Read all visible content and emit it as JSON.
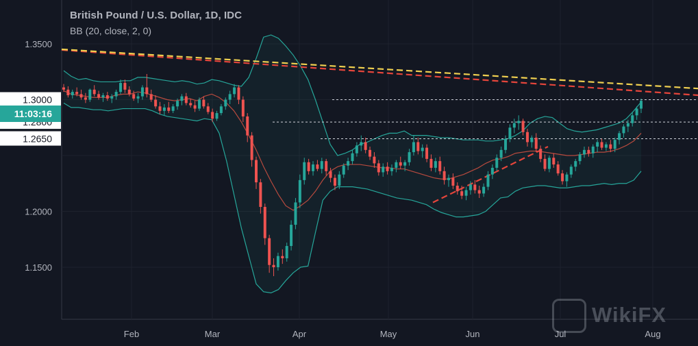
{
  "header": {
    "title": "British Pound / U.S. Dollar, 1D, IDC",
    "indicator": "BB (20, close, 2, 0)"
  },
  "price_scale": {
    "current_time_tag": "11:03:16",
    "level_tags": [
      "1.3000",
      "1.2800",
      "1.2650"
    ]
  },
  "watermark": "WikiFX",
  "colors": {
    "background": "#131722",
    "up": "#26a69a",
    "down": "#ef5350",
    "bb_band": "#26a69a",
    "bb_basis": "#b84a3e",
    "trend_yellow": "#f0d050",
    "trend_red": "#e5453b",
    "time_tag_bg": "#26a69a"
  },
  "chart_data": {
    "type": "candlestick",
    "title": "British Pound / U.S. Dollar, 1D, IDC",
    "indicator": "BB (20, close, 2, 0)",
    "x_ticks": [
      "Feb",
      "Mar",
      "Apr",
      "May",
      "Jun",
      "Jul",
      "Aug"
    ],
    "y_ticks": [
      "1.1500",
      "1.2000",
      "1.3500"
    ],
    "ylim": [
      1.115,
      1.375
    ],
    "grid": true,
    "series": [
      {
        "kind": "ohlc",
        "values": [
          [
            1.311,
            1.314,
            1.307,
            1.309
          ],
          [
            1.309,
            1.312,
            1.302,
            1.304
          ],
          [
            1.304,
            1.309,
            1.301,
            1.307
          ],
          [
            1.307,
            1.311,
            1.303,
            1.305
          ],
          [
            1.305,
            1.309,
            1.3,
            1.302
          ],
          [
            1.302,
            1.306,
            1.297,
            1.3
          ],
          [
            1.3,
            1.31,
            1.298,
            1.309
          ],
          [
            1.309,
            1.313,
            1.303,
            1.305
          ],
          [
            1.305,
            1.308,
            1.3,
            1.302
          ],
          [
            1.302,
            1.306,
            1.298,
            1.304
          ],
          [
            1.304,
            1.307,
            1.299,
            1.301
          ],
          [
            1.301,
            1.305,
            1.297,
            1.303
          ],
          [
            1.303,
            1.309,
            1.3,
            1.307
          ],
          [
            1.307,
            1.318,
            1.305,
            1.315
          ],
          [
            1.315,
            1.318,
            1.306,
            1.309
          ],
          [
            1.309,
            1.312,
            1.303,
            1.305
          ],
          [
            1.305,
            1.308,
            1.299,
            1.301
          ],
          [
            1.301,
            1.306,
            1.297,
            1.303
          ],
          [
            1.303,
            1.313,
            1.3,
            1.311
          ],
          [
            1.311,
            1.323,
            1.302,
            1.305
          ],
          [
            1.305,
            1.309,
            1.298,
            1.3
          ],
          [
            1.3,
            1.304,
            1.292,
            1.294
          ],
          [
            1.294,
            1.298,
            1.287,
            1.29
          ],
          [
            1.29,
            1.296,
            1.286,
            1.293
          ],
          [
            1.293,
            1.298,
            1.288,
            1.29
          ],
          [
            1.29,
            1.296,
            1.288,
            1.294
          ],
          [
            1.294,
            1.301,
            1.291,
            1.299
          ],
          [
            1.299,
            1.305,
            1.295,
            1.303
          ],
          [
            1.303,
            1.306,
            1.295,
            1.297
          ],
          [
            1.297,
            1.301,
            1.293,
            1.295
          ],
          [
            1.295,
            1.299,
            1.289,
            1.292
          ],
          [
            1.292,
            1.302,
            1.29,
            1.3
          ],
          [
            1.3,
            1.303,
            1.292,
            1.294
          ],
          [
            1.294,
            1.297,
            1.287,
            1.289
          ],
          [
            1.289,
            1.292,
            1.28,
            1.283
          ],
          [
            1.283,
            1.29,
            1.281,
            1.288
          ],
          [
            1.288,
            1.296,
            1.286,
            1.294
          ],
          [
            1.294,
            1.302,
            1.291,
            1.3
          ],
          [
            1.3,
            1.308,
            1.296,
            1.305
          ],
          [
            1.305,
            1.314,
            1.302,
            1.311
          ],
          [
            1.311,
            1.313,
            1.296,
            1.3
          ],
          [
            1.3,
            1.303,
            1.28,
            1.285
          ],
          [
            1.285,
            1.288,
            1.262,
            1.268
          ],
          [
            1.268,
            1.271,
            1.24,
            1.246
          ],
          [
            1.246,
            1.249,
            1.22,
            1.226
          ],
          [
            1.226,
            1.229,
            1.198,
            1.204
          ],
          [
            1.204,
            1.207,
            1.17,
            1.176
          ],
          [
            1.176,
            1.179,
            1.145,
            1.152
          ],
          [
            1.152,
            1.158,
            1.142,
            1.15
          ],
          [
            1.15,
            1.163,
            1.147,
            1.16
          ],
          [
            1.16,
            1.166,
            1.153,
            1.158
          ],
          [
            1.158,
            1.172,
            1.155,
            1.169
          ],
          [
            1.169,
            1.192,
            1.165,
            1.188
          ],
          [
            1.188,
            1.212,
            1.184,
            1.208
          ],
          [
            1.208,
            1.233,
            1.203,
            1.228
          ],
          [
            1.228,
            1.248,
            1.224,
            1.244
          ],
          [
            1.244,
            1.247,
            1.233,
            1.236
          ],
          [
            1.236,
            1.245,
            1.232,
            1.242
          ],
          [
            1.242,
            1.246,
            1.236,
            1.238
          ],
          [
            1.238,
            1.248,
            1.234,
            1.245
          ],
          [
            1.245,
            1.247,
            1.232,
            1.236
          ],
          [
            1.236,
            1.239,
            1.226,
            1.23
          ],
          [
            1.23,
            1.233,
            1.219,
            1.223
          ],
          [
            1.223,
            1.236,
            1.22,
            1.233
          ],
          [
            1.233,
            1.243,
            1.23,
            1.241
          ],
          [
            1.241,
            1.248,
            1.237,
            1.245
          ],
          [
            1.245,
            1.255,
            1.242,
            1.252
          ],
          [
            1.252,
            1.262,
            1.249,
            1.259
          ],
          [
            1.259,
            1.268,
            1.254,
            1.262
          ],
          [
            1.262,
            1.266,
            1.252,
            1.255
          ],
          [
            1.255,
            1.258,
            1.246,
            1.249
          ],
          [
            1.249,
            1.253,
            1.239,
            1.243
          ],
          [
            1.243,
            1.246,
            1.232,
            1.235
          ],
          [
            1.235,
            1.243,
            1.231,
            1.24
          ],
          [
            1.24,
            1.244,
            1.233,
            1.236
          ],
          [
            1.236,
            1.242,
            1.232,
            1.239
          ],
          [
            1.239,
            1.246,
            1.235,
            1.244
          ],
          [
            1.244,
            1.249,
            1.238,
            1.241
          ],
          [
            1.241,
            1.246,
            1.236,
            1.244
          ],
          [
            1.244,
            1.256,
            1.241,
            1.253
          ],
          [
            1.253,
            1.268,
            1.25,
            1.262
          ],
          [
            1.262,
            1.266,
            1.251,
            1.254
          ],
          [
            1.254,
            1.26,
            1.248,
            1.257
          ],
          [
            1.257,
            1.26,
            1.244,
            1.247
          ],
          [
            1.247,
            1.251,
            1.236,
            1.239
          ],
          [
            1.239,
            1.248,
            1.235,
            1.245
          ],
          [
            1.245,
            1.249,
            1.233,
            1.236
          ],
          [
            1.236,
            1.24,
            1.224,
            1.228
          ],
          [
            1.228,
            1.233,
            1.222,
            1.23
          ],
          [
            1.23,
            1.234,
            1.22,
            1.223
          ],
          [
            1.223,
            1.226,
            1.215,
            1.218
          ],
          [
            1.218,
            1.223,
            1.211,
            1.214
          ],
          [
            1.214,
            1.222,
            1.21,
            1.219
          ],
          [
            1.219,
            1.227,
            1.215,
            1.224
          ],
          [
            1.224,
            1.228,
            1.216,
            1.219
          ],
          [
            1.219,
            1.223,
            1.212,
            1.216
          ],
          [
            1.216,
            1.225,
            1.213,
            1.222
          ],
          [
            1.222,
            1.236,
            1.219,
            1.233
          ],
          [
            1.233,
            1.242,
            1.229,
            1.239
          ],
          [
            1.239,
            1.251,
            1.236,
            1.248
          ],
          [
            1.248,
            1.258,
            1.245,
            1.255
          ],
          [
            1.255,
            1.268,
            1.252,
            1.265
          ],
          [
            1.265,
            1.278,
            1.262,
            1.275
          ],
          [
            1.275,
            1.283,
            1.27,
            1.279
          ],
          [
            1.279,
            1.286,
            1.273,
            1.281
          ],
          [
            1.281,
            1.283,
            1.268,
            1.271
          ],
          [
            1.271,
            1.274,
            1.258,
            1.262
          ],
          [
            1.262,
            1.268,
            1.257,
            1.266
          ],
          [
            1.266,
            1.27,
            1.253,
            1.256
          ],
          [
            1.256,
            1.259,
            1.244,
            1.247
          ],
          [
            1.247,
            1.251,
            1.236,
            1.238
          ],
          [
            1.238,
            1.25,
            1.235,
            1.248
          ],
          [
            1.248,
            1.252,
            1.239,
            1.242
          ],
          [
            1.242,
            1.245,
            1.232,
            1.234
          ],
          [
            1.234,
            1.237,
            1.224,
            1.227
          ],
          [
            1.227,
            1.235,
            1.222,
            1.233
          ],
          [
            1.233,
            1.242,
            1.23,
            1.24
          ],
          [
            1.24,
            1.247,
            1.236,
            1.245
          ],
          [
            1.245,
            1.253,
            1.242,
            1.251
          ],
          [
            1.251,
            1.258,
            1.248,
            1.255
          ],
          [
            1.255,
            1.258,
            1.249,
            1.252
          ],
          [
            1.252,
            1.26,
            1.248,
            1.258
          ],
          [
            1.258,
            1.264,
            1.253,
            1.262
          ],
          [
            1.262,
            1.265,
            1.255,
            1.257
          ],
          [
            1.257,
            1.262,
            1.254,
            1.26
          ],
          [
            1.26,
            1.264,
            1.253,
            1.256
          ],
          [
            1.256,
            1.266,
            1.253,
            1.264
          ],
          [
            1.264,
            1.272,
            1.26,
            1.27
          ],
          [
            1.27,
            1.278,
            1.266,
            1.276
          ],
          [
            1.276,
            1.282,
            1.271,
            1.279
          ],
          [
            1.279,
            1.289,
            1.276,
            1.286
          ],
          [
            1.286,
            1.294,
            1.282,
            1.292
          ],
          [
            1.292,
            1.301,
            1.288,
            1.299
          ]
        ]
      },
      {
        "name": "BB upper",
        "values": [
          1.326,
          1.321,
          1.318,
          1.319,
          1.317,
          1.316,
          1.316,
          1.316,
          1.317,
          1.317,
          1.32,
          1.32,
          1.319,
          1.318,
          1.317,
          1.316,
          1.317,
          1.316,
          1.314,
          1.315,
          1.318,
          1.317,
          1.315,
          1.313,
          1.312,
          1.32,
          1.337,
          1.356,
          1.358,
          1.355,
          1.348,
          1.34,
          1.33,
          1.318,
          1.3,
          1.28,
          1.26,
          1.25,
          1.252,
          1.255,
          1.26,
          1.262,
          1.265,
          1.268,
          1.27,
          1.27,
          1.272,
          1.268,
          1.268,
          1.268,
          1.267,
          1.266,
          1.266,
          1.265,
          1.264,
          1.264,
          1.264,
          1.263,
          1.263,
          1.264,
          1.265,
          1.268,
          1.272,
          1.279,
          1.283,
          1.285,
          1.284,
          1.279,
          1.274,
          1.272,
          1.271,
          1.272,
          1.273,
          1.275,
          1.277,
          1.279,
          1.283,
          1.29,
          1.298
        ]
      },
      {
        "name": "BB basis",
        "values": [
          1.308,
          1.305,
          1.304,
          1.303,
          1.302,
          1.302,
          1.302,
          1.304,
          1.305,
          1.305,
          1.307,
          1.306,
          1.304,
          1.302,
          1.3,
          1.299,
          1.3,
          1.301,
          1.299,
          1.303,
          1.305,
          1.302,
          1.297,
          1.29,
          1.28,
          1.268,
          1.255,
          1.24,
          1.227,
          1.215,
          1.205,
          1.201,
          1.205,
          1.21,
          1.218,
          1.228,
          1.236,
          1.24,
          1.242,
          1.242,
          1.242,
          1.241,
          1.24,
          1.239,
          1.239,
          1.238,
          1.238,
          1.236,
          1.234,
          1.232,
          1.23,
          1.229,
          1.229,
          1.231,
          1.233,
          1.236,
          1.239,
          1.243,
          1.246,
          1.247,
          1.249,
          1.252,
          1.253,
          1.254,
          1.254,
          1.253,
          1.252,
          1.251,
          1.25,
          1.25,
          1.251,
          1.252,
          1.253,
          1.253,
          1.254,
          1.256,
          1.259,
          1.263,
          1.27
        ]
      },
      {
        "name": "BB lower",
        "values": [
          1.297,
          1.293,
          1.293,
          1.292,
          1.291,
          1.291,
          1.29,
          1.291,
          1.292,
          1.292,
          1.292,
          1.292,
          1.29,
          1.287,
          1.285,
          1.284,
          1.283,
          1.282,
          1.281,
          1.283,
          1.282,
          1.27,
          1.245,
          1.215,
          1.185,
          1.16,
          1.135,
          1.128,
          1.127,
          1.13,
          1.138,
          1.145,
          1.15,
          1.151,
          1.181,
          1.21,
          1.218,
          1.222,
          1.222,
          1.222,
          1.221,
          1.22,
          1.218,
          1.216,
          1.214,
          1.212,
          1.211,
          1.21,
          1.208,
          1.206,
          1.202,
          1.199,
          1.197,
          1.195,
          1.195,
          1.196,
          1.197,
          1.2,
          1.206,
          1.212,
          1.213,
          1.218,
          1.221,
          1.222,
          1.223,
          1.223,
          1.222,
          1.221,
          1.221,
          1.222,
          1.223,
          1.223,
          1.224,
          1.225,
          1.224,
          1.225,
          1.225,
          1.228,
          1.236
        ]
      }
    ],
    "trendlines": [
      {
        "name": "yellow dashed",
        "from": 1.3445,
        "to": 1.31
      },
      {
        "name": "red dashed",
        "from": 1.3445,
        "to": 1.304
      },
      {
        "name": "red dashed support",
        "from": 1.208,
        "to": 1.258
      }
    ],
    "horizontal_levels": [
      1.3,
      1.28,
      1.265
    ]
  }
}
